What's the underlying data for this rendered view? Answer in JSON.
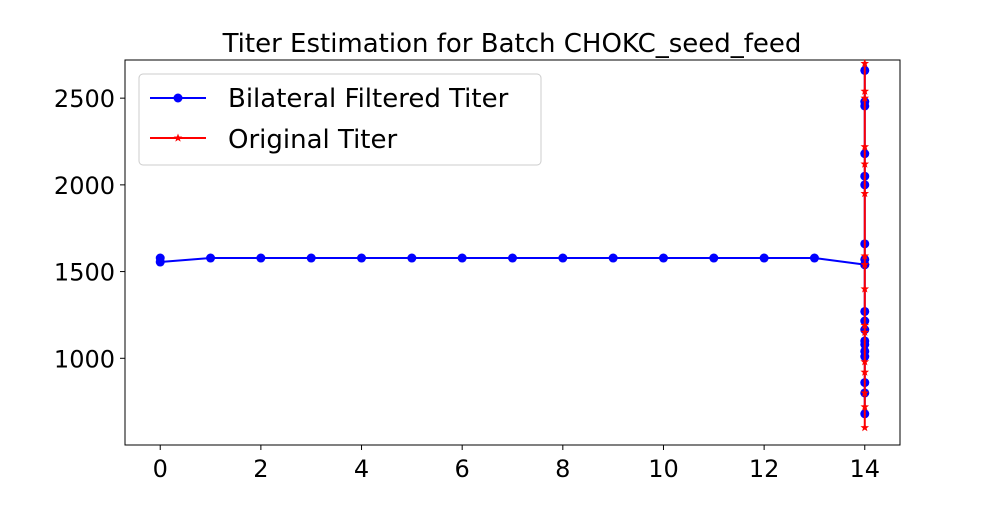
{
  "chart_data": {
    "type": "line",
    "title": "Titer Estimation for Batch CHOKC_seed_feed",
    "xlabel": "",
    "ylabel": "",
    "xlim": [
      -0.7,
      14.7
    ],
    "ylim": [
      500,
      2720
    ],
    "xticks": [
      0,
      2,
      4,
      6,
      8,
      10,
      12,
      14
    ],
    "yticks": [
      1000,
      1500,
      2000,
      2500
    ],
    "grid": false,
    "legend_position": "upper-left",
    "series": [
      {
        "name": "Bilateral Filtered Titer",
        "color": "#0000ff",
        "marker": "circle",
        "points": [
          [
            0,
            1578
          ],
          [
            0,
            1555
          ],
          [
            1,
            1578
          ],
          [
            2,
            1578
          ],
          [
            3,
            1578
          ],
          [
            4,
            1578
          ],
          [
            5,
            1578
          ],
          [
            6,
            1578
          ],
          [
            7,
            1578
          ],
          [
            8,
            1578
          ],
          [
            9,
            1578
          ],
          [
            10,
            1578
          ],
          [
            11,
            1578
          ],
          [
            12,
            1578
          ],
          [
            13,
            1578
          ],
          [
            14,
            1540
          ],
          [
            14,
            2660
          ],
          [
            14,
            2480
          ],
          [
            14,
            2455
          ],
          [
            14,
            2180
          ],
          [
            14,
            2050
          ],
          [
            14,
            2000
          ],
          [
            14,
            1660
          ],
          [
            14,
            1570
          ],
          [
            14,
            1540
          ],
          [
            14,
            1270
          ],
          [
            14,
            1215
          ],
          [
            14,
            1165
          ],
          [
            14,
            1100
          ],
          [
            14,
            1080
          ],
          [
            14,
            1040
          ],
          [
            14,
            1010
          ],
          [
            14,
            860
          ],
          [
            14,
            800
          ],
          [
            14,
            680
          ]
        ]
      },
      {
        "name": "Original Titer",
        "color": "#ff0000",
        "marker": "star",
        "points": [
          [
            14,
            2700
          ],
          [
            14,
            2540
          ],
          [
            14,
            2500
          ],
          [
            14,
            2220
          ],
          [
            14,
            2120
          ],
          [
            14,
            1950
          ],
          [
            14,
            1590
          ],
          [
            14,
            1540
          ],
          [
            14,
            1400
          ],
          [
            14,
            1190
          ],
          [
            14,
            1150
          ],
          [
            14,
            980
          ],
          [
            14,
            920
          ],
          [
            14,
            800
          ],
          [
            14,
            720
          ],
          [
            14,
            600
          ]
        ]
      }
    ]
  }
}
